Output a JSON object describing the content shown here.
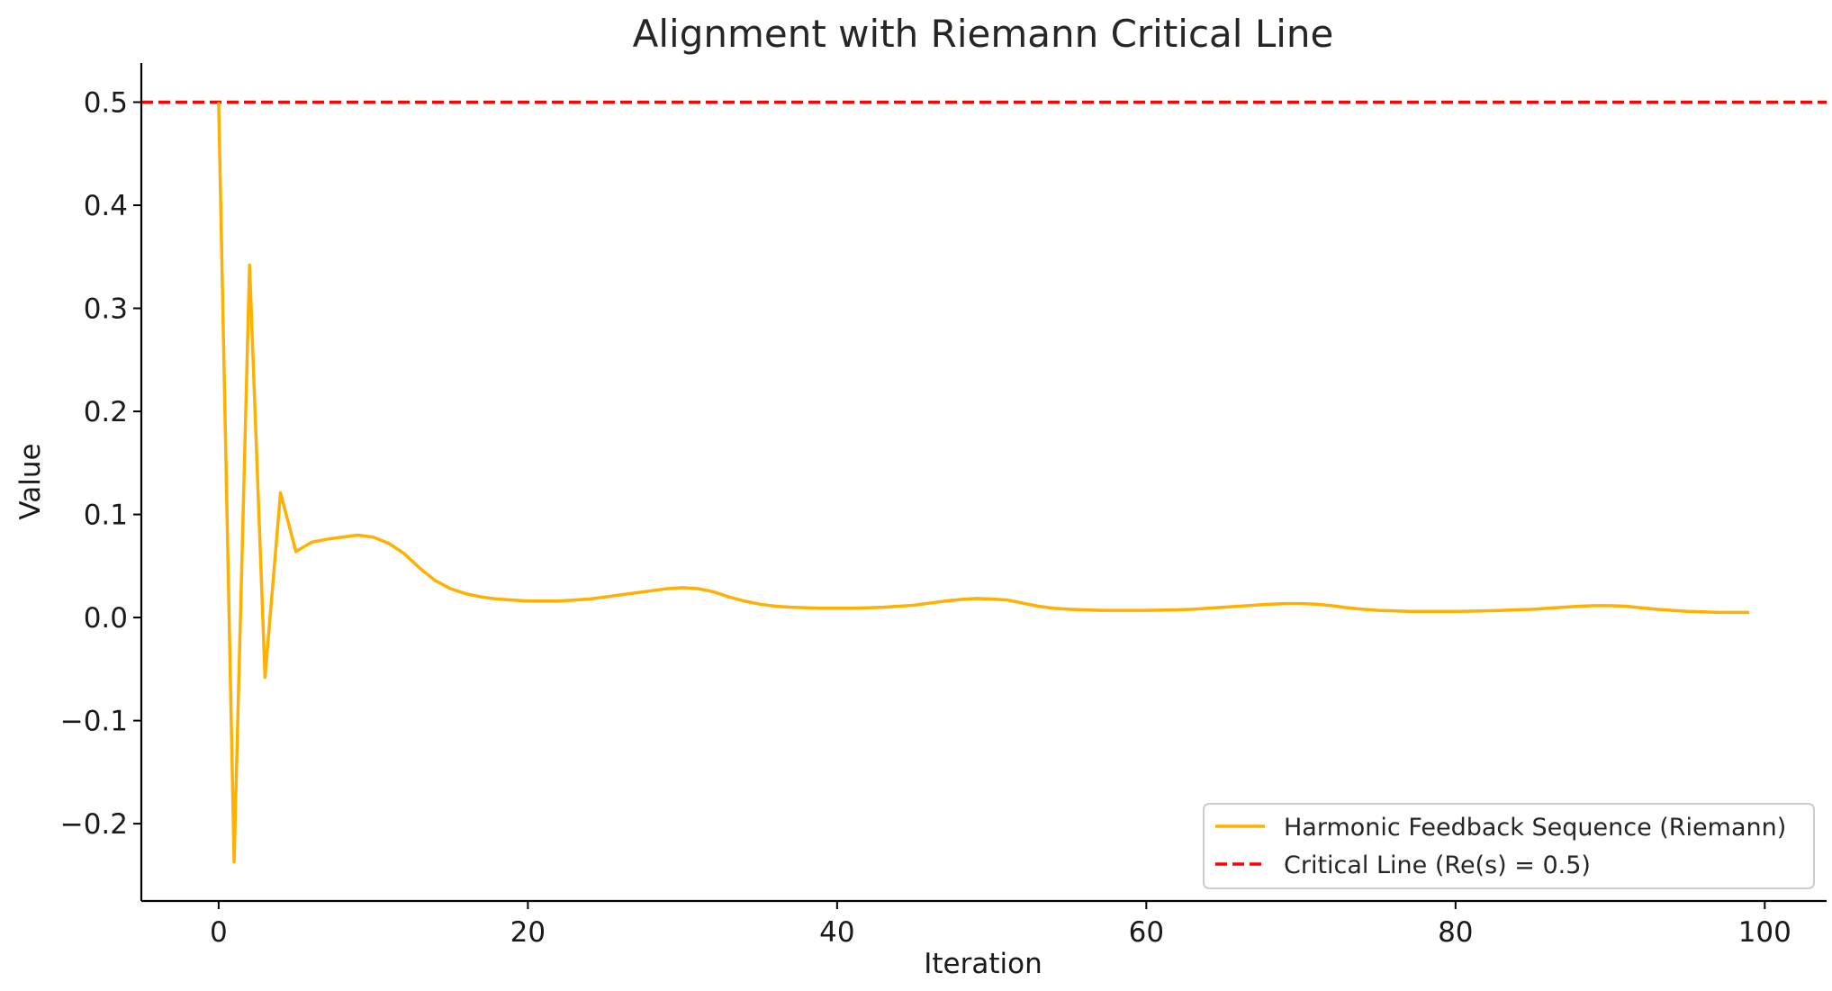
{
  "chart_data": {
    "type": "line",
    "title": "Alignment with Riemann Critical Line",
    "xlabel": "Iteration",
    "ylabel": "Value",
    "xlim": [
      -5,
      104
    ],
    "ylim": [
      -0.275,
      0.538
    ],
    "xticks": [
      0,
      20,
      40,
      60,
      80,
      100
    ],
    "xtick_labels": [
      "0",
      "20",
      "40",
      "60",
      "80",
      "100"
    ],
    "yticks": [
      -0.2,
      -0.1,
      0.0,
      0.1,
      0.2,
      0.3,
      0.4,
      0.5
    ],
    "ytick_labels": [
      "−0.2",
      "−0.1",
      "0.0",
      "0.1",
      "0.2",
      "0.3",
      "0.4",
      "0.5"
    ],
    "grid": false,
    "legend_position": "lower-right",
    "series": [
      {
        "name": "Harmonic Feedback Sequence (Riemann)",
        "color": "#FFB000",
        "style": "solid",
        "x": [
          0,
          1,
          2,
          3,
          4,
          5,
          6,
          7,
          8,
          9,
          10,
          11,
          12,
          13,
          14,
          15,
          16,
          17,
          18,
          19,
          20,
          21,
          22,
          23,
          24,
          25,
          26,
          27,
          28,
          29,
          30,
          31,
          32,
          33,
          34,
          35,
          36,
          37,
          38,
          39,
          40,
          41,
          42,
          43,
          44,
          45,
          46,
          47,
          48,
          49,
          50,
          51,
          52,
          53,
          54,
          55,
          56,
          57,
          58,
          59,
          60,
          61,
          62,
          63,
          64,
          65,
          66,
          67,
          68,
          69,
          70,
          71,
          72,
          73,
          74,
          75,
          76,
          77,
          78,
          79,
          80,
          81,
          82,
          83,
          84,
          85,
          86,
          87,
          88,
          89,
          90,
          91,
          92,
          93,
          94,
          95,
          96,
          97,
          98,
          99
        ],
        "values": [
          0.5,
          -0.237,
          0.342,
          -0.058,
          0.121,
          0.064,
          0.073,
          0.076,
          0.078,
          0.08,
          0.078,
          0.072,
          0.062,
          0.048,
          0.036,
          0.028,
          0.023,
          0.02,
          0.018,
          0.017,
          0.016,
          0.016,
          0.016,
          0.017,
          0.018,
          0.02,
          0.022,
          0.024,
          0.026,
          0.028,
          0.029,
          0.028,
          0.025,
          0.02,
          0.016,
          0.013,
          0.011,
          0.01,
          0.0095,
          0.009,
          0.009,
          0.009,
          0.0095,
          0.01,
          0.011,
          0.012,
          0.014,
          0.016,
          0.0175,
          0.0185,
          0.018,
          0.017,
          0.014,
          0.011,
          0.009,
          0.008,
          0.0075,
          0.007,
          0.007,
          0.007,
          0.007,
          0.0072,
          0.0075,
          0.008,
          0.009,
          0.01,
          0.011,
          0.012,
          0.013,
          0.0135,
          0.0135,
          0.013,
          0.0115,
          0.0095,
          0.008,
          0.007,
          0.0065,
          0.006,
          0.006,
          0.006,
          0.006,
          0.0062,
          0.0065,
          0.007,
          0.0075,
          0.008,
          0.009,
          0.01,
          0.011,
          0.0115,
          0.0115,
          0.011,
          0.0095,
          0.008,
          0.007,
          0.006,
          0.0055,
          0.005,
          0.005,
          0.005
        ]
      },
      {
        "name": "Critical Line (Re(s) = 0.5)",
        "color": "#FF0000",
        "style": "dashed",
        "value": 0.5
      }
    ]
  }
}
